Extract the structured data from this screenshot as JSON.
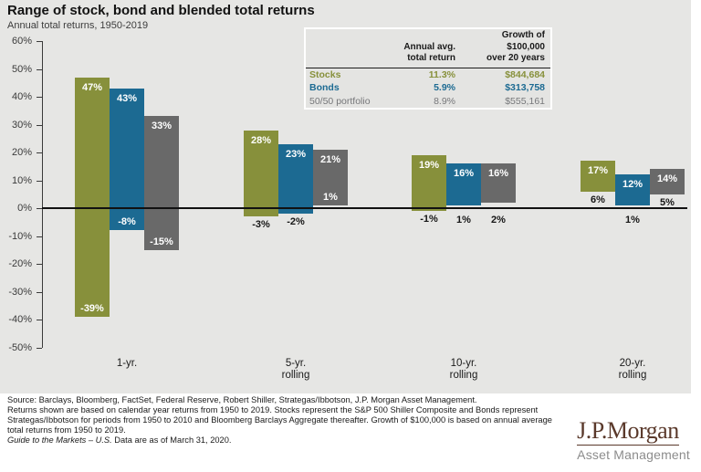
{
  "header": {
    "title": "Range of stock, bond and blended total returns",
    "subtitle": "Annual total returns, 1950-2019"
  },
  "stats_table": {
    "headers": {
      "col2_line1": "Annual avg.",
      "col2_line2": "total return",
      "col3_line1": "Growth of $100,000",
      "col3_line2": "over 20 years"
    },
    "rows": [
      {
        "label": "Stocks",
        "avg": "11.3%",
        "growth": "$844,684"
      },
      {
        "label": "Bonds",
        "avg": "5.9%",
        "growth": "$313,758"
      },
      {
        "label": "50/50 portfolio",
        "avg": "8.9%",
        "growth": "$555,161"
      }
    ]
  },
  "chart_data": {
    "type": "bar",
    "subtype": "floating-range-bars",
    "title": "Range of stock, bond and blended total returns",
    "subtitle": "Annual total returns, 1950-2019",
    "categories": [
      "1-yr.",
      "5-yr.\nrolling",
      "10-yr.\nrolling",
      "20-yr.\nrolling"
    ],
    "series": [
      {
        "name": "Stocks",
        "color": "#87903B",
        "ranges": [
          [
            -39,
            47
          ],
          [
            -3,
            28
          ],
          [
            -1,
            19
          ],
          [
            6,
            17
          ]
        ],
        "min_label_inside": [
          true,
          false,
          false,
          false
        ]
      },
      {
        "name": "Bonds",
        "color": "#1C6A92",
        "ranges": [
          [
            -8,
            43
          ],
          [
            -2,
            23
          ],
          [
            1,
            16
          ],
          [
            1,
            12
          ]
        ],
        "min_label_inside": [
          true,
          false,
          false,
          false
        ]
      },
      {
        "name": "50/50 portfolio",
        "color": "#696969",
        "ranges": [
          [
            -15,
            33
          ],
          [
            1,
            21
          ],
          [
            2,
            16
          ],
          [
            5,
            14
          ]
        ],
        "min_label_inside": [
          true,
          true,
          false,
          false
        ]
      }
    ],
    "ylim": [
      -50,
      60
    ],
    "ytick_step": 10,
    "ytick_format": "percent",
    "xlabel": "",
    "ylabel": "",
    "grid": false,
    "legend_position": "table-top-right"
  },
  "footer": {
    "lines": [
      "Source: Barclays, Bloomberg, FactSet, Federal Reserve, Robert Shiller, Strategas/Ibbotson, J.P. Morgan Asset Management.",
      "Returns shown are based on calendar year returns from 1950 to 2019. Stocks represent the S&P 500 Shiller Composite and Bonds represent",
      "Strategas/Ibbotson for periods from 1950 to 2010 and Bloomberg Barclays Aggregate thereafter. Growth of $100,000 is based on annual average",
      "total returns from 1950 to 2019."
    ],
    "guide_italic": "Guide to the Markets – U.S.",
    "guide_rest": " Data are as of March 31, 2020."
  },
  "logo": {
    "wordmark": "J.P.Morgan",
    "tagline": "Asset Management"
  },
  "colors": {
    "panel_bg": "#E6E6E4",
    "stocks": "#87903B",
    "bonds": "#1C6A92",
    "blend": "#696969",
    "axis": "#3a3a3a",
    "zero_line": "#111111",
    "logo_brown": "#5A392B",
    "logo_gray": "#8C8C8C"
  }
}
